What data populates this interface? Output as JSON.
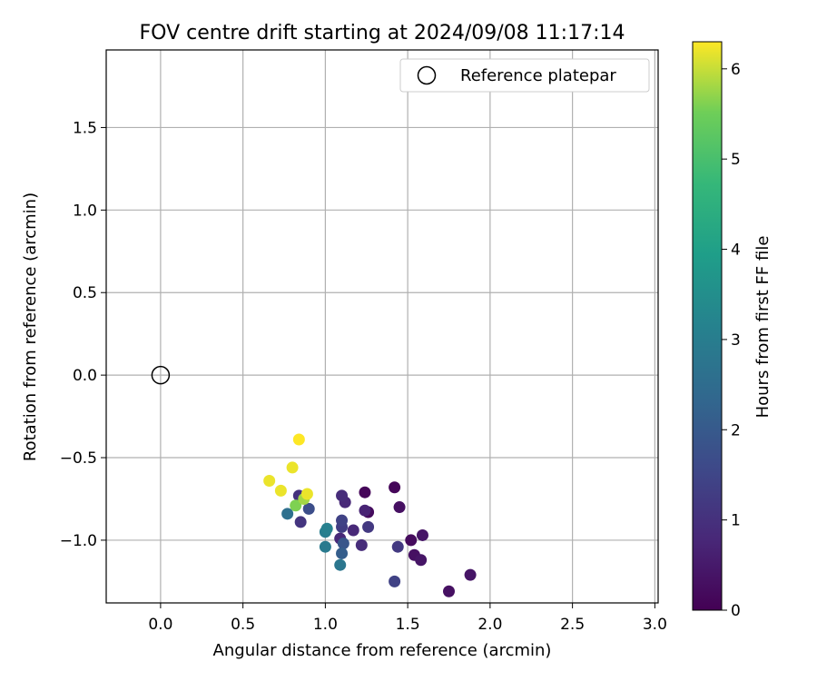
{
  "chart_data": {
    "type": "scatter",
    "title": "FOV centre drift starting at 2024/09/08 11:17:14",
    "xlabel": "Angular distance from reference (arcmin)",
    "ylabel": "Rotation from reference (arcmin)",
    "xlim": [
      -0.33,
      3.02
    ],
    "ylim": [
      -1.38,
      1.97
    ],
    "xticks": [
      "0.0",
      "0.5",
      "1.0",
      "1.5",
      "2.0",
      "2.5",
      "3.0"
    ],
    "xtick_values": [
      0,
      0.5,
      1.0,
      1.5,
      2.0,
      2.5,
      3.0
    ],
    "yticks": [
      "−1.0",
      "−0.5",
      "0.0",
      "0.5",
      "1.0",
      "1.5"
    ],
    "ytick_values": [
      -1.0,
      -0.5,
      0,
      0.5,
      1.0,
      1.5
    ],
    "grid": true,
    "legend": {
      "position": "top-right",
      "label": "Reference platepar"
    },
    "reference_point": {
      "x": 0,
      "y": 0
    },
    "colorbar": {
      "label": "Hours from first FF file",
      "min": 0,
      "max": 6.3,
      "ticks": [
        "0",
        "1",
        "2",
        "3",
        "4",
        "5",
        "6"
      ],
      "tick_values": [
        0,
        1,
        2,
        3,
        4,
        5,
        6
      ],
      "colormap": "viridis"
    },
    "points": [
      {
        "x": 1.24,
        "y": -0.71,
        "h": 0.1
      },
      {
        "x": 1.26,
        "y": -0.83,
        "h": 0.2
      },
      {
        "x": 1.42,
        "y": -0.68,
        "h": 0.1
      },
      {
        "x": 1.45,
        "y": -0.8,
        "h": 0.3
      },
      {
        "x": 1.52,
        "y": -1.0,
        "h": 0.2
      },
      {
        "x": 1.54,
        "y": -1.09,
        "h": 0.3
      },
      {
        "x": 1.58,
        "y": -1.12,
        "h": 0.4
      },
      {
        "x": 1.59,
        "y": -0.97,
        "h": 0.4
      },
      {
        "x": 1.75,
        "y": -1.31,
        "h": 0.3
      },
      {
        "x": 1.88,
        "y": -1.21,
        "h": 0.4
      },
      {
        "x": 1.24,
        "y": -0.82,
        "h": 0.7
      },
      {
        "x": 1.12,
        "y": -0.77,
        "h": 0.8
      },
      {
        "x": 1.1,
        "y": -0.73,
        "h": 0.9
      },
      {
        "x": 1.17,
        "y": -0.94,
        "h": 0.8
      },
      {
        "x": 1.22,
        "y": -1.03,
        "h": 0.9
      },
      {
        "x": 1.26,
        "y": -0.92,
        "h": 1.2
      },
      {
        "x": 1.09,
        "y": -0.99,
        "h": 0.8
      },
      {
        "x": 1.1,
        "y": -0.92,
        "h": 1.3
      },
      {
        "x": 1.1,
        "y": -0.88,
        "h": 1.4
      },
      {
        "x": 1.44,
        "y": -1.04,
        "h": 1.2
      },
      {
        "x": 1.42,
        "y": -1.25,
        "h": 1.4
      },
      {
        "x": 0.85,
        "y": -0.89,
        "h": 1.1
      },
      {
        "x": 0.84,
        "y": -0.73,
        "h": 1.0
      },
      {
        "x": 0.9,
        "y": -0.81,
        "h": 1.7
      },
      {
        "x": 1.11,
        "y": -1.02,
        "h": 1.9
      },
      {
        "x": 1.1,
        "y": -1.08,
        "h": 2.1
      },
      {
        "x": 0.77,
        "y": -0.84,
        "h": 2.6
      },
      {
        "x": 1.0,
        "y": -1.04,
        "h": 2.9
      },
      {
        "x": 1.0,
        "y": -0.95,
        "h": 3.0
      },
      {
        "x": 1.01,
        "y": -0.93,
        "h": 3.1
      },
      {
        "x": 1.09,
        "y": -1.15,
        "h": 2.8
      },
      {
        "x": 0.82,
        "y": -0.79,
        "h": 5.6
      },
      {
        "x": 0.87,
        "y": -0.75,
        "h": 5.8
      },
      {
        "x": 0.66,
        "y": -0.64,
        "h": 6.2
      },
      {
        "x": 0.73,
        "y": -0.7,
        "h": 6.2
      },
      {
        "x": 0.8,
        "y": -0.56,
        "h": 6.2
      },
      {
        "x": 0.84,
        "y": -0.39,
        "h": 6.3
      },
      {
        "x": 0.89,
        "y": -0.72,
        "h": 6.2
      }
    ]
  }
}
